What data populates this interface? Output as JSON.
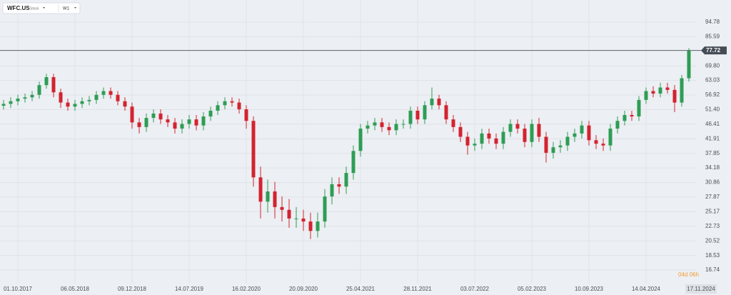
{
  "chart_data": {
    "type": "candlestick",
    "symbol": "WFC.US",
    "instrument_type": "Stock",
    "interval": "W1",
    "categories": [
      null,
      null,
      "01.10.2017",
      null,
      null,
      null,
      null,
      null,
      null,
      null,
      "06.05.2018",
      null,
      null,
      null,
      null,
      null,
      null,
      null,
      "09.12.2018",
      null,
      null,
      null,
      null,
      null,
      null,
      null,
      "14.07.2019",
      null,
      null,
      null,
      null,
      null,
      null,
      null,
      "16.02.2020",
      null,
      null,
      null,
      null,
      null,
      null,
      null,
      "20.09.2020",
      null,
      null,
      null,
      null,
      null,
      null,
      null,
      "25.04.2021",
      null,
      null,
      null,
      null,
      null,
      null,
      null,
      "28.11.2021",
      null,
      null,
      null,
      null,
      null,
      null,
      null,
      "03.07.2022",
      null,
      null,
      null,
      null,
      null,
      null,
      null,
      "05.02.2023",
      null,
      null,
      null,
      null,
      null,
      null,
      null,
      "10.09.2023",
      null,
      null,
      null,
      null,
      null,
      null,
      null,
      "14.04.2024",
      null,
      null,
      null,
      null,
      null,
      null
    ],
    "open": [
      52.8,
      53.5,
      54.5,
      55.5,
      56,
      57,
      61,
      64.5,
      58,
      54,
      52.5,
      53.5,
      54.5,
      55,
      57,
      58.5,
      57,
      54.5,
      52.5,
      47,
      45.5,
      48.5,
      50,
      48,
      47,
      45,
      46.5,
      48,
      46,
      49,
      51,
      53,
      54.5,
      54,
      51.5,
      47.5,
      32,
      27,
      29,
      26,
      25.5,
      24,
      24,
      23.5,
      22,
      23.5,
      28,
      30.5,
      30,
      33,
      38.5,
      45,
      46,
      47,
      45.5,
      44.5,
      46.5,
      46.5,
      51,
      48,
      53,
      55.5,
      53,
      48,
      45.5,
      42.5,
      40,
      40.5,
      43.5,
      42,
      40.5,
      44,
      46.5,
      45,
      41,
      46.5,
      42.5,
      38,
      39.5,
      40,
      42.5,
      43.5,
      46,
      41.5,
      40.5,
      40,
      45,
      47.5,
      49.5,
      49,
      55,
      58.5,
      57.5,
      60,
      59,
      54,
      64
    ],
    "high": [
      55,
      56,
      57,
      57.5,
      58.5,
      62.5,
      66,
      66,
      59.5,
      55.5,
      55,
      56,
      56.5,
      58.5,
      60,
      60,
      58.5,
      56,
      54,
      48.5,
      50,
      51.5,
      51.5,
      49.5,
      48.5,
      48,
      49.5,
      49.5,
      50.5,
      52.5,
      54.5,
      56,
      56,
      55.5,
      53,
      49,
      34.5,
      31.5,
      31,
      28,
      27.5,
      26,
      25.5,
      25,
      25,
      29.5,
      32,
      32,
      34.5,
      40,
      46.5,
      47.5,
      48.5,
      48.5,
      47,
      48,
      48,
      52.5,
      52.5,
      54.5,
      60,
      57,
      54.5,
      49.5,
      47,
      44,
      42,
      45,
      45,
      43.5,
      45.5,
      48,
      48,
      46.5,
      48,
      48.5,
      44,
      41,
      41.5,
      44,
      45,
      47.5,
      47.5,
      43,
      42,
      46.5,
      49,
      51,
      51,
      56.5,
      60,
      60.5,
      62,
      62,
      61,
      65.5,
      79
    ],
    "low": [
      51.5,
      52,
      53,
      54,
      54.5,
      55.5,
      59.5,
      56,
      52,
      51,
      51,
      52,
      53,
      53.5,
      55.5,
      55.5,
      53,
      51,
      45,
      43.5,
      44,
      47,
      46.5,
      45.5,
      43.5,
      43.5,
      45,
      44.5,
      44.5,
      47.5,
      49.5,
      51.5,
      52.5,
      50,
      45,
      30,
      24,
      25,
      24,
      23.5,
      22.5,
      22.5,
      22,
      20.8,
      21,
      22.5,
      26.5,
      28.5,
      28.5,
      31.5,
      37,
      43.5,
      44.5,
      44,
      43,
      43,
      45,
      45,
      46.5,
      46.5,
      51.5,
      51.5,
      46.5,
      44,
      41,
      37.5,
      38.5,
      39,
      40.5,
      39,
      39,
      42.5,
      43.5,
      39.5,
      39.5,
      41,
      35.5,
      36.5,
      38,
      38.5,
      41,
      42,
      40,
      39,
      38.5,
      38.5,
      43.5,
      46,
      47.5,
      47.5,
      53.5,
      56,
      56,
      57.5,
      50.5,
      52.5,
      62.5
    ],
    "close": [
      53.5,
      54.5,
      55.5,
      56,
      57,
      61,
      64.5,
      58,
      54,
      52.5,
      53.5,
      54.5,
      55,
      57,
      58.5,
      57,
      54.5,
      52.5,
      47,
      45.5,
      48.5,
      50,
      48,
      47,
      45,
      46.5,
      48,
      46,
      49,
      51,
      53,
      54.5,
      54,
      51.5,
      47.5,
      32,
      27,
      29,
      26,
      25.5,
      24,
      24,
      23.5,
      22,
      23.5,
      28,
      30.5,
      30,
      33,
      38.5,
      45,
      46,
      47,
      45.5,
      44.5,
      46.5,
      46.5,
      51,
      48,
      53,
      55.5,
      53,
      48,
      45.5,
      42.5,
      40,
      40.5,
      43.5,
      42,
      40.5,
      44,
      46.5,
      45,
      41,
      46.5,
      42.5,
      38,
      39.5,
      40,
      42.5,
      43.5,
      46,
      41.5,
      40.5,
      40,
      45,
      47.5,
      49.5,
      49,
      55,
      58.5,
      57.5,
      60,
      59,
      54,
      64,
      77.72
    ],
    "up_color": "#2e9d55",
    "down_color": "#d3232f",
    "log_scale": true,
    "grid": true,
    "ylim": [
      15.38,
      107.9
    ],
    "yticks": [
      16.74,
      18.53,
      20.52,
      22.73,
      25.17,
      27.87,
      30.86,
      34.18,
      37.85,
      41.91,
      46.41,
      {
        "value": 51.4,
        "label": "51.40"
      },
      56.92,
      63.03,
      {
        "value": 69.8,
        "label": "69.80"
      },
      85.59,
      94.78
    ],
    "price_label": 77.72,
    "cursor_date": "17.11.2024",
    "countdown": "04d 06h"
  }
}
